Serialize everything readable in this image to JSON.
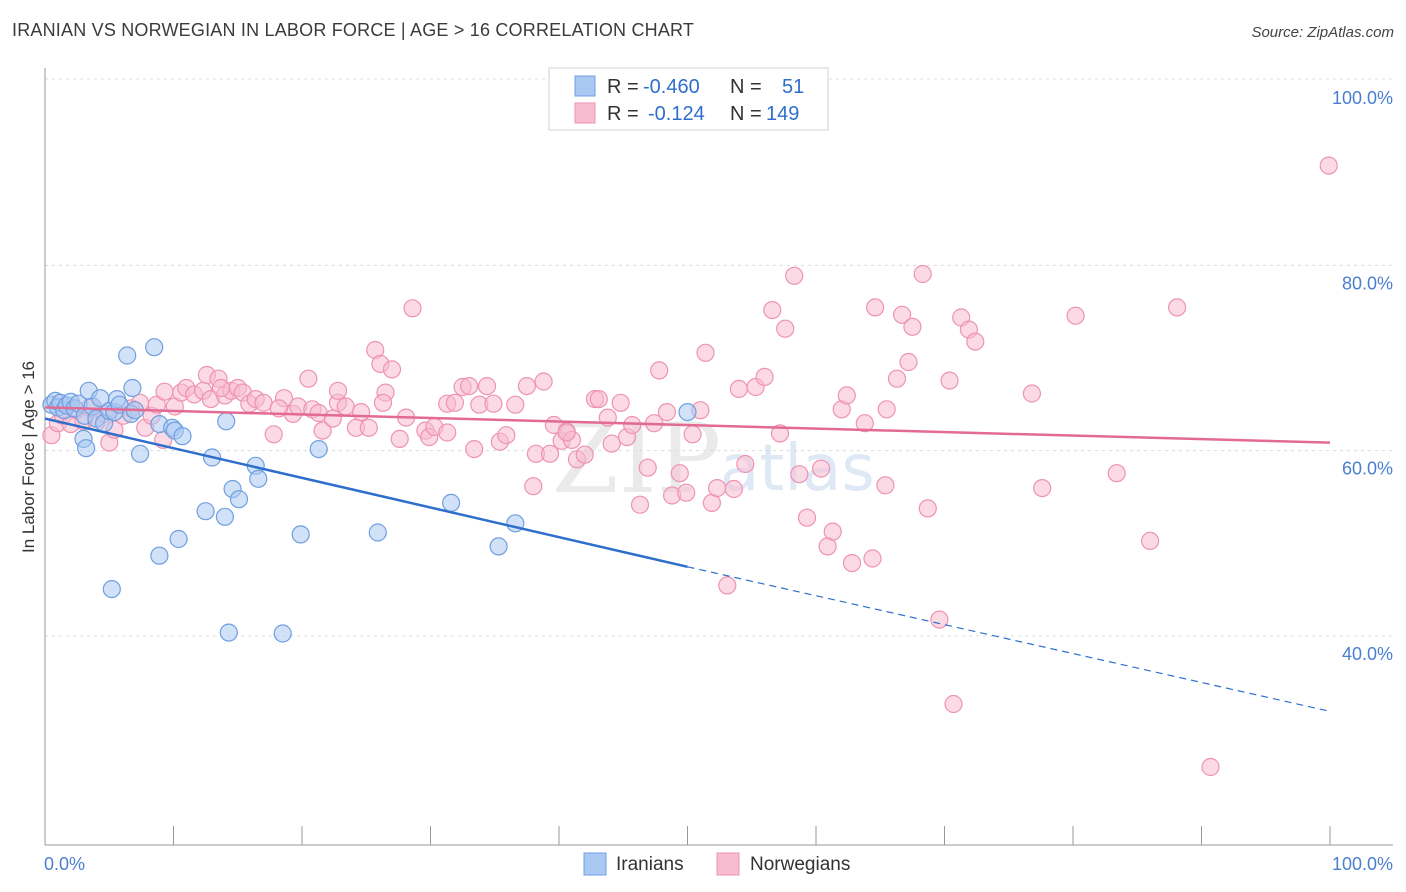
{
  "title": "IRANIAN VS NORWEGIAN IN LABOR FORCE | AGE > 16 CORRELATION CHART",
  "source": "Source: ZipAtlas.com",
  "watermark": {
    "zip": "ZIP",
    "atlas": "atlas"
  },
  "colors": {
    "iranians_fill": "#a9c9f2",
    "iranians_stroke": "#6f9fe0",
    "iranians_line": "#2f6fcc",
    "norwegians_fill": "#f7bcd0",
    "norwegians_stroke": "#ee93b2",
    "norwegians_line": "#e26a95",
    "tick_text": "#4a7fd0"
  },
  "legend": {
    "iranians": {
      "r_label": "R =",
      "r_value": "-0.460",
      "n_label": "N =",
      "n_value": "51"
    },
    "norwegians": {
      "r_label": "R =",
      "r_value": "-0.124",
      "n_label": "N =",
      "n_value": "149"
    }
  },
  "bottom_legend": {
    "iranians": "Iranians",
    "norwegians": "Norwegians"
  },
  "chart_data": {
    "type": "scatter",
    "xlabel": "",
    "ylabel": "In Labor Force | Age > 16",
    "xlim": [
      0,
      100
    ],
    "ylim": [
      20,
      100
    ],
    "x_tick_labels": [
      "0.0%",
      "100.0%"
    ],
    "y_ticks": [
      {
        "value": 100,
        "label": "100.0%"
      },
      {
        "value": 80,
        "label": "80.0%"
      },
      {
        "value": 60,
        "label": "60.0%"
      },
      {
        "value": 40,
        "label": "40.0%"
      }
    ],
    "series": [
      {
        "name": "Iranians",
        "trend": {
          "x0": 0,
          "y0": 65.3,
          "x1": 50,
          "y1": 49.3,
          "dashed_to_x": 100,
          "dashed_to_y": 33.7
        },
        "points": [
          [
            0.5,
            66.8
          ],
          [
            0.8,
            67.2
          ],
          [
            1.0,
            66.5
          ],
          [
            1.2,
            67.0
          ],
          [
            1.5,
            66.2
          ],
          [
            1.7,
            66.7
          ],
          [
            2.0,
            67.1
          ],
          [
            2.3,
            66.4
          ],
          [
            2.6,
            66.9
          ],
          [
            3.0,
            63.1
          ],
          [
            3.1,
            65.6
          ],
          [
            3.2,
            62.1
          ],
          [
            3.4,
            68.3
          ],
          [
            3.7,
            66.6
          ],
          [
            4.0,
            65.3
          ],
          [
            4.3,
            67.5
          ],
          [
            4.6,
            64.8
          ],
          [
            5.0,
            66.1
          ],
          [
            5.4,
            66.0
          ],
          [
            5.6,
            67.4
          ],
          [
            5.8,
            66.8
          ],
          [
            6.4,
            72.1
          ],
          [
            6.7,
            65.8
          ],
          [
            6.8,
            68.6
          ],
          [
            7.0,
            66.2
          ],
          [
            7.4,
            61.5
          ],
          [
            8.5,
            73.0
          ],
          [
            8.9,
            50.5
          ],
          [
            8.9,
            64.7
          ],
          [
            9.9,
            64.3
          ],
          [
            10.1,
            64.0
          ],
          [
            10.4,
            52.3
          ],
          [
            10.7,
            63.4
          ],
          [
            12.5,
            55.3
          ],
          [
            13.0,
            61.1
          ],
          [
            14.0,
            54.7
          ],
          [
            14.1,
            65.0
          ],
          [
            14.3,
            42.2
          ],
          [
            14.6,
            57.7
          ],
          [
            15.1,
            56.6
          ],
          [
            16.4,
            60.2
          ],
          [
            16.6,
            58.8
          ],
          [
            18.5,
            42.1
          ],
          [
            19.9,
            52.8
          ],
          [
            21.3,
            62.0
          ],
          [
            25.9,
            53.0
          ],
          [
            31.6,
            56.2
          ],
          [
            35.3,
            51.5
          ],
          [
            36.6,
            54.0
          ],
          [
            50.0,
            66.0
          ],
          [
            5.2,
            46.9
          ]
        ]
      },
      {
        "name": "Norwegians",
        "trend": {
          "x0": 0,
          "y0": 66.5,
          "x1": 100,
          "y1": 62.7
        },
        "points": [
          [
            0.5,
            63.5
          ],
          [
            1.0,
            64.8
          ],
          [
            1.4,
            65.6
          ],
          [
            2.0,
            64.7
          ],
          [
            2.4,
            66.2
          ],
          [
            3.0,
            65.0
          ],
          [
            3.5,
            66.5
          ],
          [
            4.0,
            64.9
          ],
          [
            4.6,
            65.8
          ],
          [
            5.0,
            62.7
          ],
          [
            5.4,
            64.1
          ],
          [
            6.1,
            65.6
          ],
          [
            6.7,
            66.4
          ],
          [
            7.4,
            67.0
          ],
          [
            7.8,
            64.3
          ],
          [
            8.3,
            65.6
          ],
          [
            8.7,
            66.8
          ],
          [
            9.3,
            68.2
          ],
          [
            10.1,
            66.6
          ],
          [
            10.6,
            68.1
          ],
          [
            11.0,
            68.6
          ],
          [
            11.6,
            67.9
          ],
          [
            12.3,
            68.3
          ],
          [
            12.6,
            70.0
          ],
          [
            12.9,
            67.4
          ],
          [
            13.5,
            69.6
          ],
          [
            14.0,
            67.8
          ],
          [
            14.5,
            68.3
          ],
          [
            15.0,
            68.6
          ],
          [
            15.4,
            68.1
          ],
          [
            15.9,
            66.9
          ],
          [
            16.4,
            67.4
          ],
          [
            17.0,
            67.0
          ],
          [
            17.8,
            63.6
          ],
          [
            18.6,
            67.5
          ],
          [
            19.3,
            65.8
          ],
          [
            19.7,
            66.6
          ],
          [
            20.5,
            69.6
          ],
          [
            20.8,
            66.3
          ],
          [
            21.3,
            65.9
          ],
          [
            21.6,
            64.0
          ],
          [
            22.4,
            65.3
          ],
          [
            22.8,
            67.0
          ],
          [
            23.4,
            66.6
          ],
          [
            24.2,
            64.3
          ],
          [
            24.6,
            66.0
          ],
          [
            25.2,
            64.3
          ],
          [
            25.7,
            72.7
          ],
          [
            26.1,
            71.2
          ],
          [
            26.5,
            68.1
          ],
          [
            27.0,
            70.6
          ],
          [
            27.6,
            63.1
          ],
          [
            28.1,
            65.4
          ],
          [
            28.6,
            77.2
          ],
          [
            29.6,
            64.0
          ],
          [
            29.9,
            63.3
          ],
          [
            30.3,
            64.4
          ],
          [
            31.3,
            66.9
          ],
          [
            31.9,
            67.0
          ],
          [
            32.5,
            68.7
          ],
          [
            33.0,
            68.8
          ],
          [
            33.4,
            62.0
          ],
          [
            33.8,
            66.8
          ],
          [
            34.4,
            68.8
          ],
          [
            34.9,
            66.9
          ],
          [
            35.4,
            62.8
          ],
          [
            35.9,
            63.5
          ],
          [
            36.6,
            66.8
          ],
          [
            37.5,
            68.8
          ],
          [
            38.2,
            61.5
          ],
          [
            38.8,
            69.3
          ],
          [
            39.3,
            61.5
          ],
          [
            39.6,
            64.6
          ],
          [
            40.2,
            62.9
          ],
          [
            40.6,
            63.9
          ],
          [
            41.0,
            63.0
          ],
          [
            41.4,
            60.9
          ],
          [
            42.0,
            61.4
          ],
          [
            42.8,
            67.4
          ],
          [
            43.1,
            67.4
          ],
          [
            43.8,
            65.4
          ],
          [
            44.1,
            62.6
          ],
          [
            44.8,
            67.0
          ],
          [
            45.3,
            63.3
          ],
          [
            45.7,
            64.6
          ],
          [
            46.3,
            56.0
          ],
          [
            46.9,
            60.0
          ],
          [
            47.4,
            64.8
          ],
          [
            47.8,
            70.5
          ],
          [
            48.4,
            66.0
          ],
          [
            48.8,
            57.0
          ],
          [
            49.4,
            59.4
          ],
          [
            49.9,
            57.3
          ],
          [
            50.4,
            63.6
          ],
          [
            51.0,
            66.2
          ],
          [
            51.4,
            72.4
          ],
          [
            51.9,
            56.2
          ],
          [
            52.3,
            57.8
          ],
          [
            53.1,
            47.3
          ],
          [
            53.6,
            57.7
          ],
          [
            54.0,
            68.5
          ],
          [
            54.5,
            60.4
          ],
          [
            55.3,
            68.7
          ],
          [
            56.0,
            69.8
          ],
          [
            56.6,
            77.0
          ],
          [
            57.2,
            63.7
          ],
          [
            57.6,
            75.0
          ],
          [
            58.3,
            80.7
          ],
          [
            58.7,
            59.3
          ],
          [
            59.3,
            54.6
          ],
          [
            60.4,
            59.9
          ],
          [
            60.9,
            51.5
          ],
          [
            61.3,
            53.1
          ],
          [
            62.0,
            66.3
          ],
          [
            62.4,
            67.8
          ],
          [
            62.8,
            49.7
          ],
          [
            63.8,
            64.8
          ],
          [
            64.4,
            50.2
          ],
          [
            64.6,
            77.3
          ],
          [
            65.4,
            58.1
          ],
          [
            65.5,
            66.3
          ],
          [
            66.3,
            69.6
          ],
          [
            66.7,
            76.5
          ],
          [
            67.2,
            71.4
          ],
          [
            67.5,
            75.2
          ],
          [
            68.3,
            80.9
          ],
          [
            68.7,
            55.6
          ],
          [
            69.6,
            43.6
          ],
          [
            70.4,
            69.4
          ],
          [
            70.7,
            34.5
          ],
          [
            71.3,
            76.2
          ],
          [
            71.9,
            74.9
          ],
          [
            72.4,
            73.6
          ],
          [
            76.8,
            68.0
          ],
          [
            77.6,
            57.8
          ],
          [
            80.2,
            76.4
          ],
          [
            83.4,
            59.4
          ],
          [
            86.0,
            52.1
          ],
          [
            88.1,
            77.3
          ],
          [
            90.7,
            27.7
          ],
          [
            99.9,
            92.6
          ],
          [
            22.8,
            68.3
          ],
          [
            13.7,
            68.6
          ],
          [
            9.2,
            63.0
          ],
          [
            26.3,
            67.0
          ],
          [
            31.3,
            63.8
          ],
          [
            18.2,
            66.4
          ],
          [
            38.0,
            58.0
          ],
          [
            40.6,
            63.8
          ]
        ]
      }
    ]
  }
}
